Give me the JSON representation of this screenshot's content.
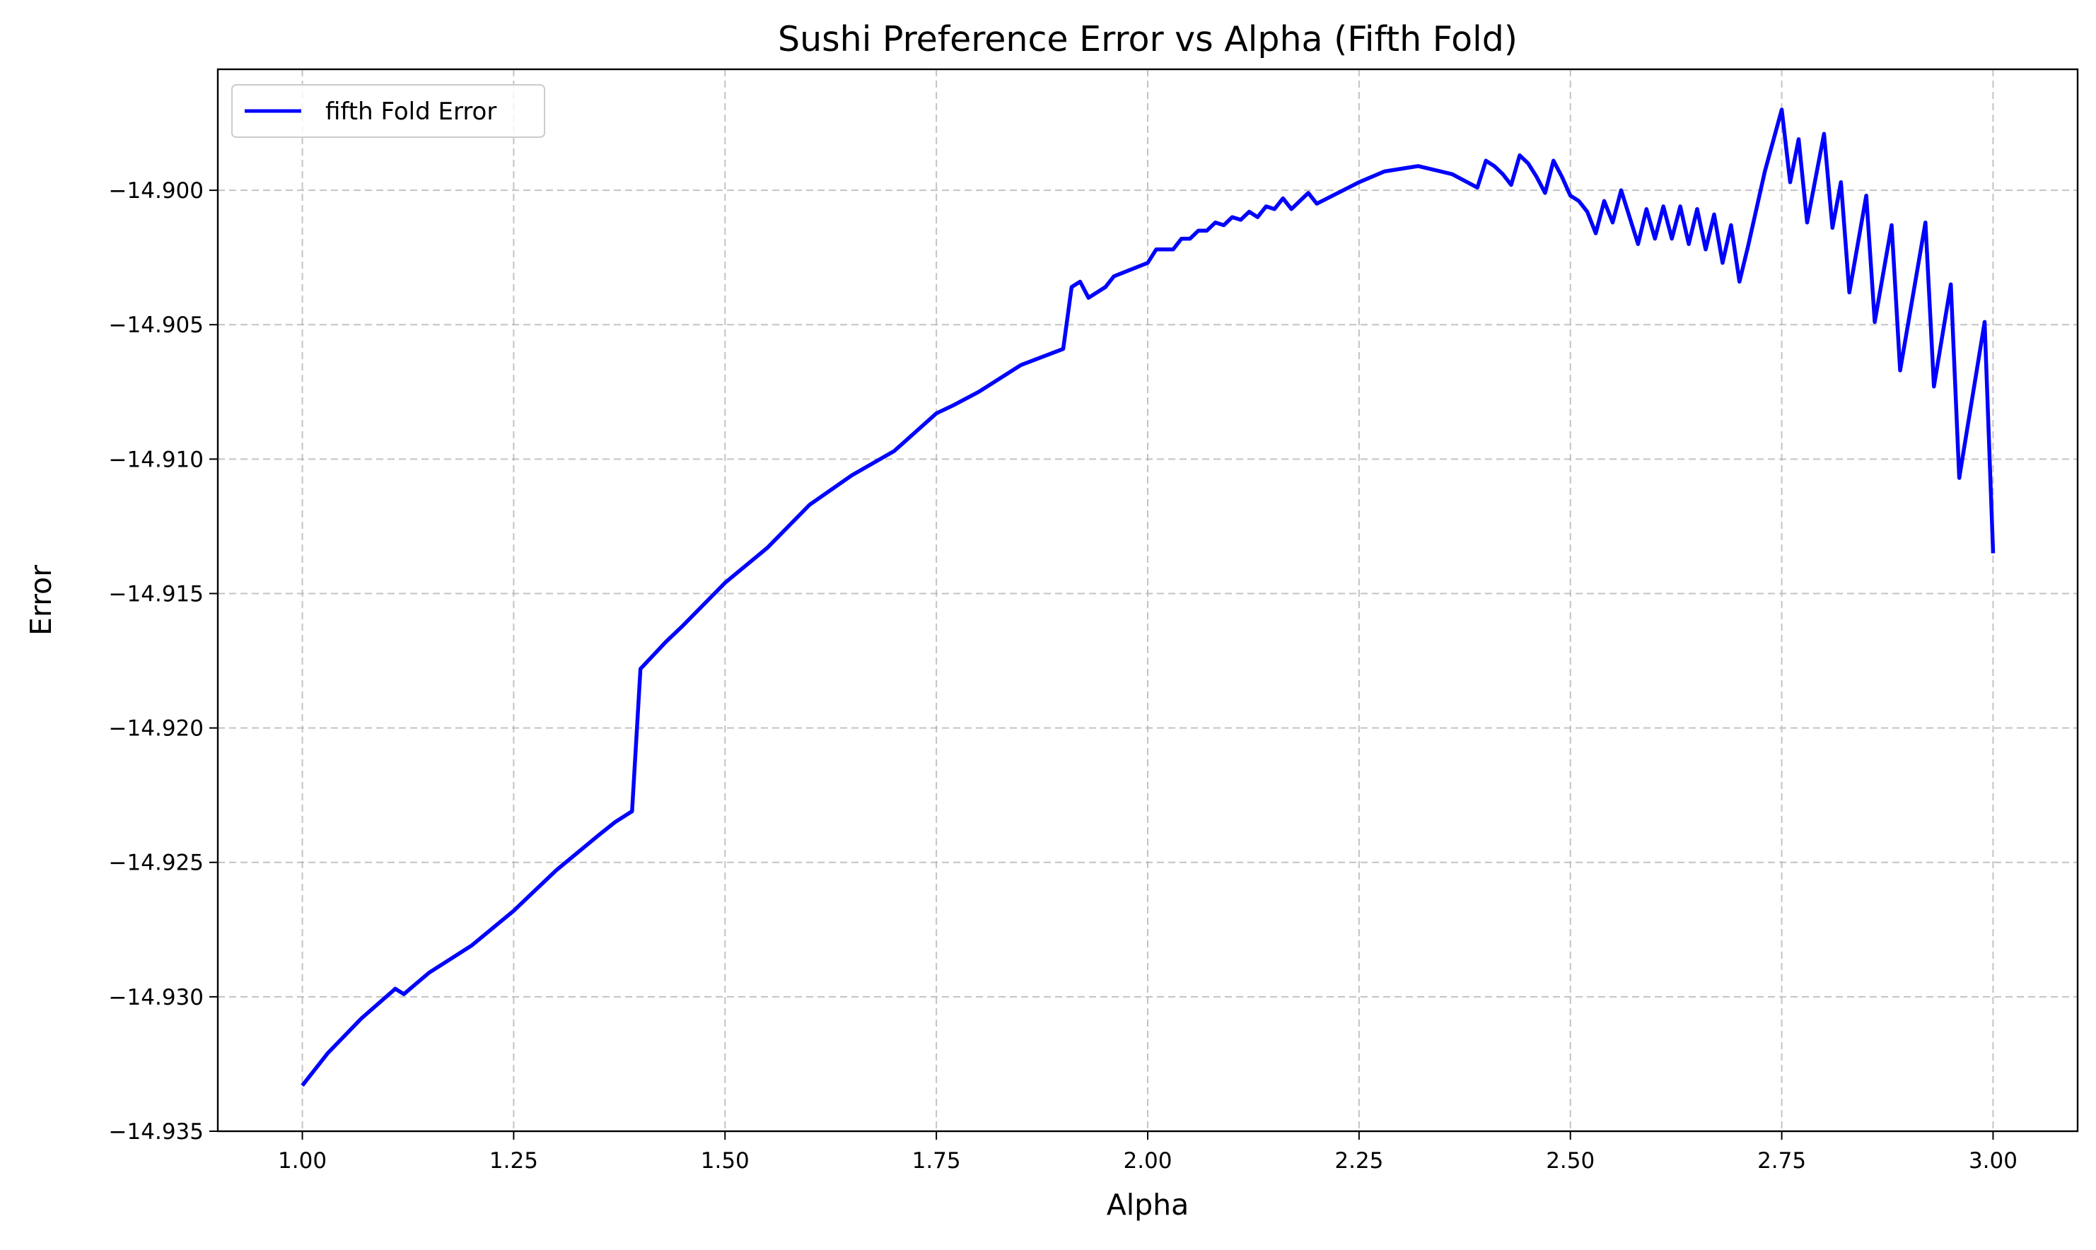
{
  "chart_data": {
    "type": "line",
    "title": "Sushi Preference Error vs Alpha (Fifth Fold)",
    "xlabel": "Alpha",
    "ylabel": "Error",
    "xlim": [
      0.9,
      3.1
    ],
    "ylim": [
      -14.935,
      -14.8955
    ],
    "grid": true,
    "legend_position": "top-left",
    "x_ticks": [
      1.0,
      1.25,
      1.5,
      1.75,
      2.0,
      2.25,
      2.5,
      2.75,
      3.0
    ],
    "x_tick_labels": [
      "1.00",
      "1.25",
      "1.50",
      "1.75",
      "2.00",
      "2.25",
      "2.50",
      "2.75",
      "3.00"
    ],
    "y_ticks": [
      -14.935,
      -14.93,
      -14.925,
      -14.92,
      -14.915,
      -14.91,
      -14.905,
      -14.9
    ],
    "y_tick_labels": [
      "−14.935",
      "−14.930",
      "−14.925",
      "−14.920",
      "−14.915",
      "−14.910",
      "−14.905",
      "−14.900"
    ],
    "series": [
      {
        "name": "fifth Fold Error",
        "color": "#0000ff",
        "x": [
          1.0,
          1.03,
          1.07,
          1.11,
          1.12,
          1.15,
          1.2,
          1.25,
          1.3,
          1.35,
          1.37,
          1.39,
          1.4,
          1.43,
          1.45,
          1.5,
          1.55,
          1.6,
          1.65,
          1.7,
          1.75,
          1.77,
          1.8,
          1.85,
          1.9,
          1.91,
          1.92,
          1.93,
          1.95,
          1.96,
          2.0,
          2.01,
          2.03,
          2.04,
          2.05,
          2.06,
          2.07,
          2.08,
          2.09,
          2.1,
          2.11,
          2.12,
          2.13,
          2.14,
          2.15,
          2.16,
          2.17,
          2.18,
          2.19,
          2.2,
          2.25,
          2.28,
          2.32,
          2.36,
          2.39,
          2.4,
          2.41,
          2.42,
          2.43,
          2.44,
          2.45,
          2.46,
          2.47,
          2.48,
          2.49,
          2.5,
          2.51,
          2.52,
          2.53,
          2.54,
          2.55,
          2.56,
          2.57,
          2.58,
          2.59,
          2.6,
          2.61,
          2.62,
          2.63,
          2.64,
          2.65,
          2.66,
          2.67,
          2.68,
          2.69,
          2.7,
          2.71,
          2.73,
          2.75,
          2.76,
          2.77,
          2.78,
          2.8,
          2.81,
          2.82,
          2.83,
          2.85,
          2.86,
          2.88,
          2.89,
          2.92,
          2.93,
          2.95,
          2.96,
          2.99,
          3.0
        ],
        "values": [
          -14.9333,
          -14.9321,
          -14.9308,
          -14.9297,
          -14.9299,
          -14.9291,
          -14.9281,
          -14.9268,
          -14.9253,
          -14.924,
          -14.9235,
          -14.9231,
          -14.9178,
          -14.9168,
          -14.9162,
          -14.9146,
          -14.9133,
          -14.9117,
          -14.9106,
          -14.9097,
          -14.9083,
          -14.908,
          -14.9075,
          -14.9065,
          -14.9059,
          -14.9036,
          -14.9034,
          -14.904,
          -14.9036,
          -14.9032,
          -14.9027,
          -14.9022,
          -14.9022,
          -14.9018,
          -14.9018,
          -14.9015,
          -14.9015,
          -14.9012,
          -14.9013,
          -14.901,
          -14.9011,
          -14.9008,
          -14.901,
          -14.9006,
          -14.9007,
          -14.9003,
          -14.9007,
          -14.9004,
          -14.9001,
          -14.9005,
          -14.8997,
          -14.8993,
          -14.8991,
          -14.8994,
          -14.8999,
          -14.8989,
          -14.8991,
          -14.8994,
          -14.8998,
          -14.8987,
          -14.899,
          -14.8995,
          -14.9001,
          -14.8989,
          -14.8995,
          -14.9002,
          -14.9004,
          -14.9008,
          -14.9016,
          -14.9004,
          -14.9012,
          -14.9,
          -14.901,
          -14.902,
          -14.9007,
          -14.9018,
          -14.9006,
          -14.9018,
          -14.9006,
          -14.902,
          -14.9007,
          -14.9022,
          -14.9009,
          -14.9027,
          -14.9013,
          -14.9034,
          -14.9021,
          -14.8993,
          -14.897,
          -14.8997,
          -14.8981,
          -14.9012,
          -14.8979,
          -14.9014,
          -14.8997,
          -14.9038,
          -14.9002,
          -14.9049,
          -14.9013,
          -14.9067,
          -14.9012,
          -14.9073,
          -14.9035,
          -14.9107,
          -14.9049,
          -14.9135
        ]
      }
    ]
  }
}
